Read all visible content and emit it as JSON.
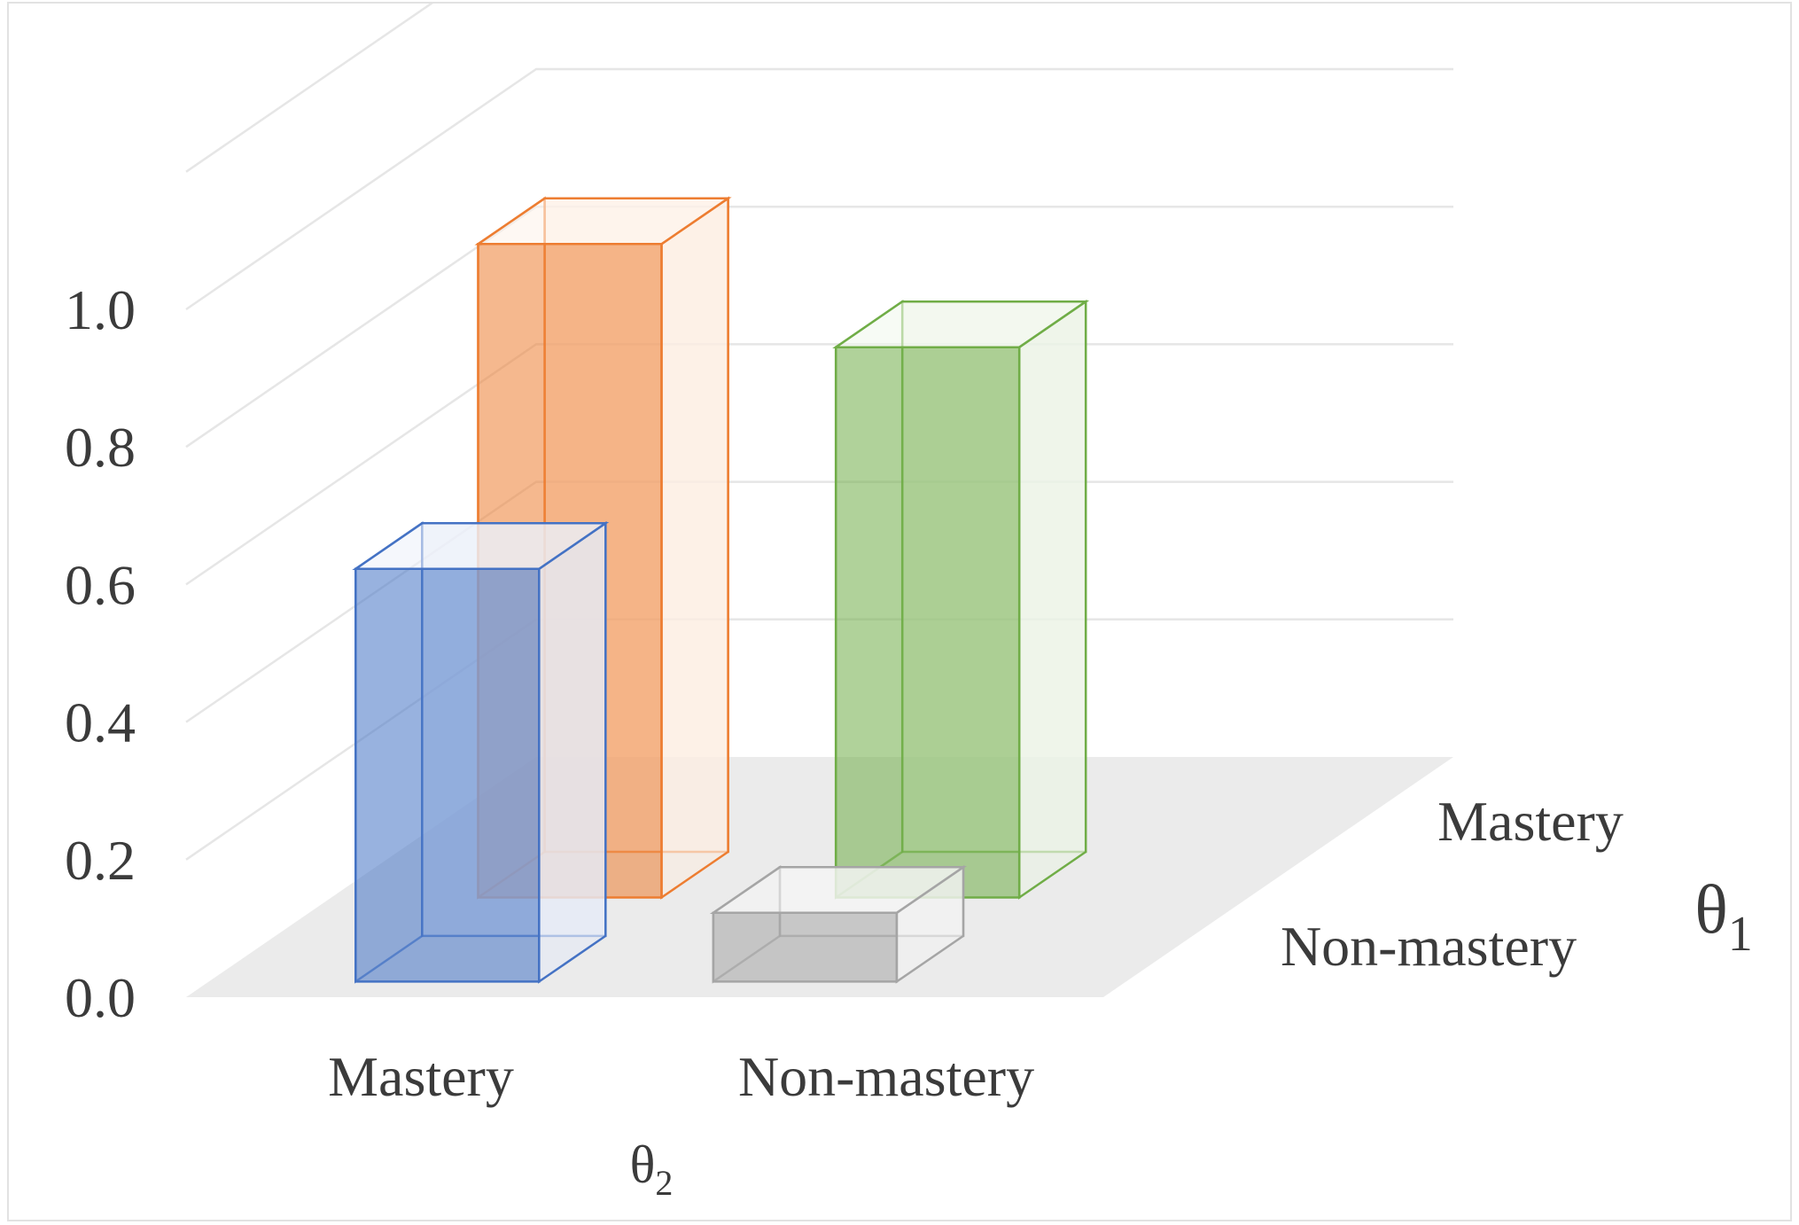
{
  "chart_data": {
    "type": "bar",
    "variant": "3d-grouped",
    "x_axis": {
      "title_symbol": "θ",
      "title_subscript": "2",
      "categories": [
        "Mastery",
        "Non-mastery"
      ]
    },
    "depth_axis": {
      "title_symbol": "θ",
      "title_subscript": "1",
      "categories": [
        "Non-mastery",
        "Mastery"
      ]
    },
    "y_axis": {
      "ticks": [
        "0.0",
        "0.2",
        "0.4",
        "0.6",
        "0.8",
        "1.0"
      ],
      "tick_values": [
        0.0,
        0.2,
        0.4,
        0.6,
        0.8,
        1.0
      ],
      "ylim": [
        0,
        1.2
      ]
    },
    "bars": [
      {
        "x": "Mastery",
        "depth": "Non-mastery",
        "value": 0.6,
        "color": "#4472c4"
      },
      {
        "x": "Non-mastery",
        "depth": "Non-mastery",
        "value": 0.1,
        "color": "#a5a5a5"
      },
      {
        "x": "Mastery",
        "depth": "Mastery",
        "value": 0.95,
        "color": "#ed7d31"
      },
      {
        "x": "Non-mastery",
        "depth": "Mastery",
        "value": 0.8,
        "color": "#70ad47"
      }
    ],
    "grid": true,
    "legend": "none"
  }
}
